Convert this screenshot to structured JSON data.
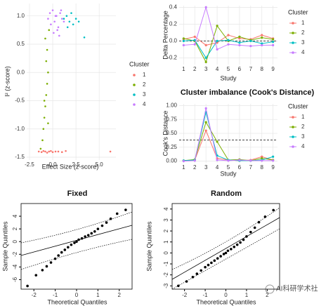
{
  "chart_data": [
    {
      "type": "scatter",
      "x_label": "Effect Size (z-score)",
      "y_label": "I² (z-score)",
      "legend_title": "Cluster",
      "grid": true,
      "xlim": [
        -2.8,
        6.8
      ],
      "ylim": [
        -1.55,
        1.22
      ],
      "xticks": [
        -2.5,
        {
          "value": 0,
          "label": "0.0"
        },
        2.5,
        {
          "value": 5,
          "label": "5.0"
        }
      ],
      "yticks": [
        -1.5,
        {
          "value": -1,
          "label": "-1.0"
        },
        -0.5,
        {
          "value": 0,
          "label": "0.0"
        },
        0.5,
        {
          "value": 1,
          "label": "1.0"
        }
      ],
      "series": [
        {
          "name": "1",
          "color": "#F8766D",
          "x": [
            -1.5,
            -1.2,
            -1.0,
            -0.8,
            -0.6,
            -0.4,
            -0.2,
            0.0,
            0.3,
            0.6,
            1.0,
            1.4,
            6.2
          ],
          "values": [
            -1.4,
            -1.41,
            -1.39,
            -1.4,
            -1.42,
            -1.4,
            -1.39,
            -1.41,
            -1.4,
            -1.4,
            -1.41,
            -1.39,
            -1.4
          ]
        },
        {
          "name": "2",
          "color": "#7CAE00",
          "x": [
            -1.3,
            -1.1,
            -1.0,
            -0.9,
            -0.8,
            -0.7,
            -0.6,
            -0.5,
            -0.7,
            -0.9,
            -0.6,
            -0.8,
            -0.5,
            -0.4
          ],
          "values": [
            -1.35,
            -1.2,
            -1.0,
            -0.8,
            -0.6,
            -0.4,
            -0.2,
            0.0,
            0.2,
            -0.5,
            0.4,
            0.6,
            -0.9,
            0.75
          ]
        },
        {
          "name": "3",
          "color": "#00BFC4",
          "x": [
            1.2,
            1.5,
            1.8,
            2.0,
            2.2,
            2.5,
            1.6,
            2.8,
            3.4
          ],
          "values": [
            0.95,
            1.0,
            0.9,
            1.05,
            0.85,
            0.95,
            0.8,
            0.9,
            0.62
          ]
        },
        {
          "name": "4",
          "color": "#C77CFF",
          "x": [
            -0.5,
            -0.3,
            0,
            0.2,
            0.4,
            0.6,
            0.8,
            1.0,
            1.2,
            0.1,
            0.5,
            -0.2,
            0.9,
            0.3,
            0.7
          ],
          "values": [
            0.95,
            1.05,
            1.1,
            0.9,
            1.0,
            0.8,
            1.05,
            0.95,
            0.9,
            0.7,
            0.75,
            0.85,
            1.1,
            1.0,
            0.65
          ]
        }
      ]
    },
    {
      "type": "line",
      "x_label": "Study",
      "y_label": "Delta Percentage",
      "legend_title": "Cluster",
      "grid": true,
      "x": [
        1,
        2,
        3,
        4,
        5,
        6,
        7,
        8,
        9
      ],
      "xlim": [
        0.6,
        9.4
      ],
      "xticks": [
        1,
        2,
        3,
        4,
        5,
        6,
        7,
        8,
        9
      ],
      "ylim": [
        -0.28,
        0.42
      ],
      "yticks": [
        -0.2,
        {
          "value": 0,
          "label": "0.0"
        },
        0.2,
        0.4
      ],
      "hline": 0,
      "series": [
        {
          "name": "1",
          "color": "#F8766D",
          "values": [
            0.02,
            0.05,
            -0.05,
            -0.02,
            0.07,
            0.03,
            0.02,
            0.07,
            0.03
          ]
        },
        {
          "name": "2",
          "color": "#7CAE00",
          "values": [
            0.03,
            0.0,
            -0.25,
            0.18,
            0.0,
            0.05,
            0.01,
            0.04,
            0.02
          ]
        },
        {
          "name": "3",
          "color": "#00BFC4",
          "values": [
            0.0,
            0.01,
            -0.2,
            0.0,
            0.01,
            -0.02,
            0.0,
            -0.03,
            -0.01
          ]
        },
        {
          "name": "4",
          "color": "#C77CFF",
          "values": [
            -0.05,
            -0.04,
            0.4,
            -0.1,
            -0.04,
            -0.05,
            -0.06,
            -0.05,
            -0.05
          ]
        }
      ]
    },
    {
      "type": "line",
      "title": "Cluster imbalance (Cook's Distance)",
      "x_label": "Study",
      "y_label": "Cook's Distance",
      "legend_title": "Cluster",
      "grid": true,
      "x": [
        1,
        2,
        3,
        4,
        5,
        6,
        7,
        8,
        9
      ],
      "xlim": [
        0.6,
        9.4
      ],
      "xticks": [
        1,
        2,
        3,
        4,
        5,
        6,
        7,
        8,
        9
      ],
      "ylim": [
        -0.03,
        1.03
      ],
      "yticks": [
        {
          "value": 0,
          "label": "0.00"
        },
        {
          "value": 0.25,
          "label": "0.25"
        },
        {
          "value": 0.5,
          "label": "0.50"
        },
        {
          "value": 0.75,
          "label": "0.75"
        },
        {
          "value": 1,
          "label": "1.00"
        }
      ],
      "hline": 0.38,
      "series": [
        {
          "name": "1",
          "color": "#F8766D",
          "values": [
            0.01,
            0.02,
            0.55,
            0.05,
            0.02,
            0.01,
            0.02,
            0.08,
            0.02
          ]
        },
        {
          "name": "2",
          "color": "#7CAE00",
          "values": [
            0.01,
            0.03,
            0.7,
            0.35,
            0.02,
            0.03,
            0.01,
            0.05,
            0.02
          ]
        },
        {
          "name": "3",
          "color": "#00BFC4",
          "values": [
            0.01,
            0.02,
            0.88,
            0.1,
            0.02,
            0.01,
            0.01,
            0.02,
            0.08
          ]
        },
        {
          "name": "4",
          "color": "#C77CFF",
          "values": [
            0.0,
            0.01,
            0.95,
            0.02,
            0.01,
            0.02,
            0.01,
            0.01,
            0.01
          ]
        }
      ]
    },
    {
      "type": "scatter",
      "title": "Fixed",
      "x_label": "Theoretical Quantiles",
      "y_label": "Sample Quantiles",
      "xlim": [
        -2.6,
        2.6
      ],
      "ylim": [
        -7.5,
        6
      ],
      "xticks": [
        -2,
        -1,
        0,
        1,
        2
      ],
      "yticks": [
        -6,
        -4,
        -2,
        0,
        2,
        4
      ],
      "series": [
        {
          "color": "#000000",
          "x": [
            -2.3,
            -1.9,
            -1.6,
            -1.4,
            -1.2,
            -1.0,
            -0.85,
            -0.7,
            -0.55,
            -0.4,
            -0.25,
            -0.1,
            0,
            0.1,
            0.25,
            0.4,
            0.55,
            0.7,
            0.85,
            1.0,
            1.2,
            1.4,
            1.6,
            1.9,
            2.3
          ],
          "values": [
            -7,
            -5.3,
            -4.5,
            -3.9,
            -3.3,
            -2.7,
            -2.2,
            -1.7,
            -1.3,
            -0.9,
            -0.5,
            -0.2,
            0,
            0.3,
            0.5,
            0.8,
            1.0,
            1.3,
            1.6,
            2.0,
            2.5,
            3.0,
            3.6,
            4.4,
            5.0
          ]
        }
      ]
    },
    {
      "type": "scatter",
      "title": "Random",
      "x_label": "Theoretical Quantiles",
      "y_label": "Sample Quantiles",
      "xlim": [
        -2.6,
        2.6
      ],
      "ylim": [
        -3.3,
        4.5
      ],
      "xticks": [
        -2,
        -1,
        0,
        1,
        2
      ],
      "yticks": [
        -3,
        -2,
        -1,
        0,
        1,
        2,
        3,
        4
      ],
      "series": [
        {
          "color": "#000000",
          "x": [
            -2.3,
            -1.9,
            -1.6,
            -1.4,
            -1.2,
            -1.0,
            -0.85,
            -0.7,
            -0.55,
            -0.4,
            -0.25,
            -0.1,
            0,
            0.1,
            0.25,
            0.4,
            0.55,
            0.7,
            0.85,
            1.0,
            1.2,
            1.4,
            1.6,
            1.9,
            2.3
          ],
          "values": [
            -3.0,
            -2.6,
            -2.2,
            -1.9,
            -1.6,
            -1.3,
            -1.1,
            -0.9,
            -0.7,
            -0.5,
            -0.3,
            -0.1,
            0,
            0.2,
            0.35,
            0.55,
            0.75,
            0.95,
            1.2,
            1.5,
            1.9,
            2.3,
            2.8,
            3.3,
            3.9
          ]
        }
      ]
    }
  ],
  "watermark": "AI科研学术社"
}
